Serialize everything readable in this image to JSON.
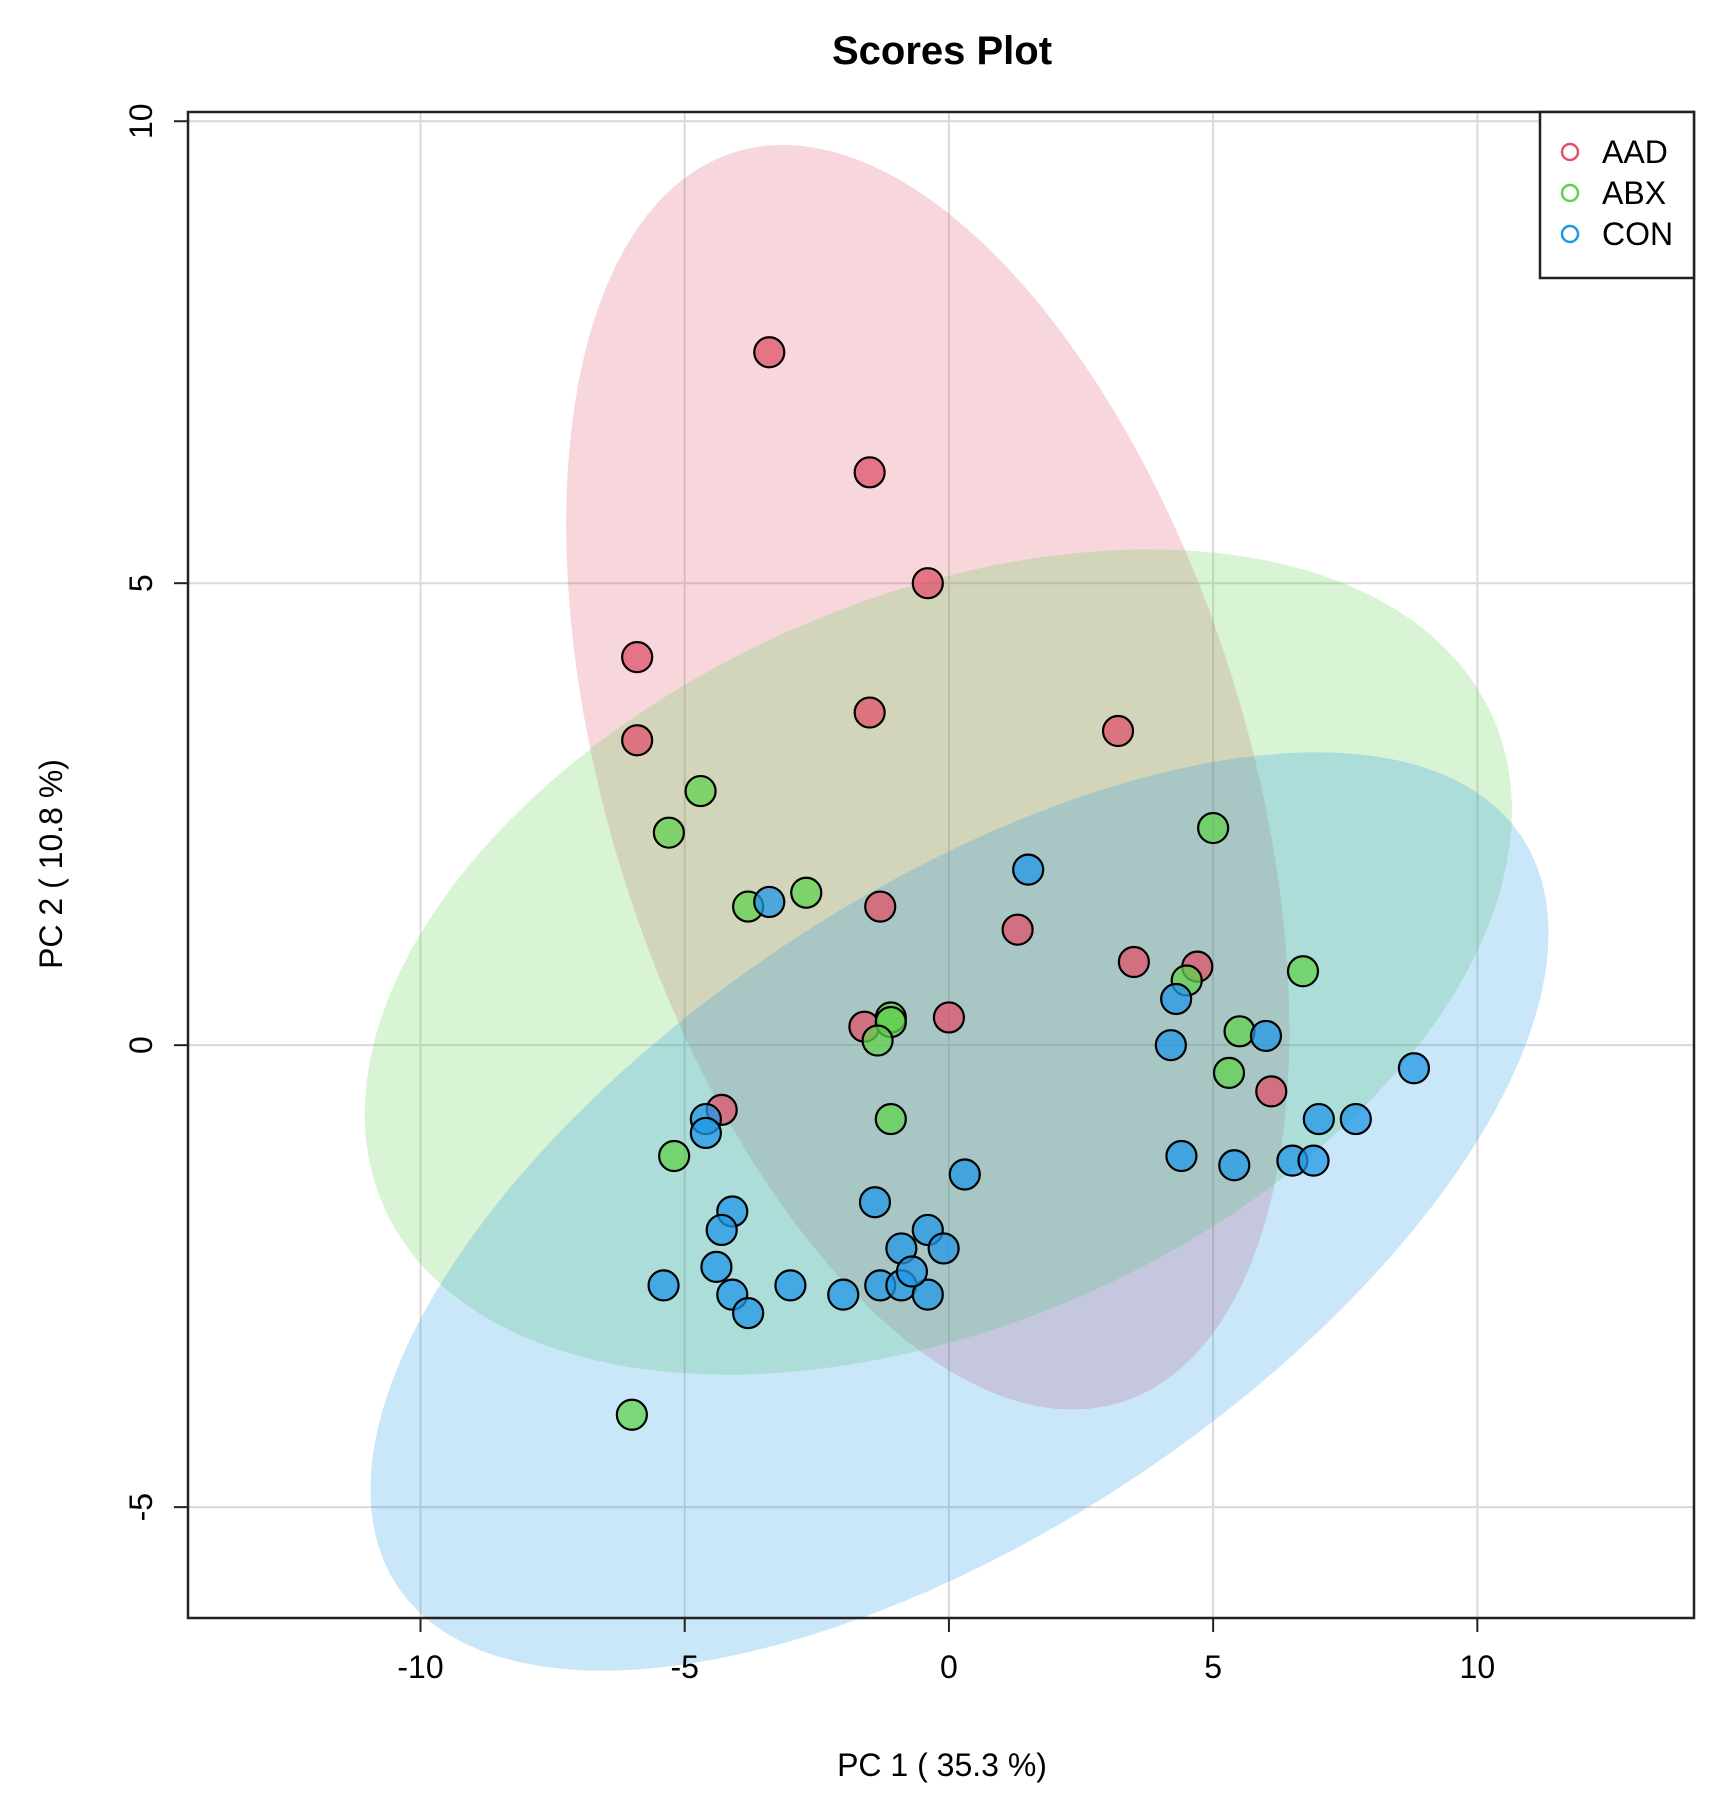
{
  "chart_data": {
    "type": "scatter",
    "title": "Scores Plot",
    "xlabel": "PC 1 ( 35.3 %)",
    "ylabel": "PC 2 ( 10.8 %)",
    "xlim": [
      -14.4,
      14.1
    ],
    "ylim": [
      -6.2,
      10.1
    ],
    "xticks": [
      -10,
      -5,
      0,
      5,
      10
    ],
    "yticks": [
      -5,
      0,
      5,
      10
    ],
    "xtick_labels": [
      "-10",
      "-5",
      "0",
      "5",
      "10"
    ],
    "ytick_labels": [
      "-5",
      "0",
      "5",
      "10"
    ],
    "grid": true,
    "legend_position": "top-right",
    "series": [
      {
        "name": "AAD",
        "color": "#df536b",
        "ellipse": {
          "cx": -0.4,
          "cy": 2.9,
          "rx": 8.1,
          "ry": 5.3,
          "angle_deg": -45
        },
        "points": [
          [
            -3.4,
            7.5
          ],
          [
            -1.5,
            6.2
          ],
          [
            -0.4,
            5.0
          ],
          [
            -5.9,
            4.2
          ],
          [
            -5.9,
            3.3
          ],
          [
            -1.5,
            3.6
          ],
          [
            3.2,
            3.4
          ],
          [
            -1.3,
            1.5
          ],
          [
            1.3,
            1.25
          ],
          [
            3.5,
            0.9
          ],
          [
            4.7,
            0.85
          ],
          [
            -1.6,
            0.2
          ],
          [
            0.0,
            0.3
          ],
          [
            -4.3,
            -0.7
          ],
          [
            6.1,
            -0.5
          ]
        ]
      },
      {
        "name": "ABX",
        "color": "#61d04f",
        "ellipse": {
          "cx": -0.2,
          "cy": 0.9,
          "rx": 11.0,
          "ry": 4.1,
          "angle_deg": 10
        },
        "points": [
          [
            -4.7,
            2.75
          ],
          [
            -5.3,
            2.3
          ],
          [
            5.0,
            2.35
          ],
          [
            -3.8,
            1.5
          ],
          [
            -2.7,
            1.65
          ],
          [
            -1.1,
            0.3
          ],
          [
            -1.1,
            0.25
          ],
          [
            -1.35,
            0.05
          ],
          [
            4.5,
            0.7
          ],
          [
            6.7,
            0.8
          ],
          [
            5.5,
            0.15
          ],
          [
            5.3,
            -0.3
          ],
          [
            -1.1,
            -0.8
          ],
          [
            -5.2,
            -1.2
          ],
          [
            -6.0,
            -4.0
          ]
        ]
      },
      {
        "name": "CON",
        "color": "#2297e6",
        "ellipse": {
          "cx": 0.2,
          "cy": -1.8,
          "rx": 11.6,
          "ry": 3.8,
          "angle_deg": 17
        },
        "points": [
          [
            -3.4,
            1.55
          ],
          [
            1.5,
            1.9
          ],
          [
            4.3,
            0.5
          ],
          [
            4.2,
            0.0
          ],
          [
            6.0,
            0.1
          ],
          [
            8.8,
            -0.25
          ],
          [
            7.0,
            -0.8
          ],
          [
            7.7,
            -0.8
          ],
          [
            4.4,
            -1.2
          ],
          [
            5.4,
            -1.3
          ],
          [
            6.5,
            -1.25
          ],
          [
            6.9,
            -1.25
          ],
          [
            -4.6,
            -0.8
          ],
          [
            -4.6,
            -0.95
          ],
          [
            0.3,
            -1.4
          ],
          [
            -1.4,
            -1.7
          ],
          [
            -4.1,
            -1.8
          ],
          [
            -4.3,
            -2.0
          ],
          [
            -0.4,
            -2.0
          ],
          [
            -0.9,
            -2.2
          ],
          [
            -0.1,
            -2.2
          ],
          [
            -5.4,
            -2.6
          ],
          [
            -4.4,
            -2.4
          ],
          [
            -4.1,
            -2.7
          ],
          [
            -3.8,
            -2.9
          ],
          [
            -3.0,
            -2.6
          ],
          [
            -2.0,
            -2.7
          ],
          [
            -1.3,
            -2.6
          ],
          [
            -0.9,
            -2.6
          ],
          [
            -0.4,
            -2.7
          ],
          [
            -0.7,
            -2.45
          ]
        ]
      }
    ]
  }
}
